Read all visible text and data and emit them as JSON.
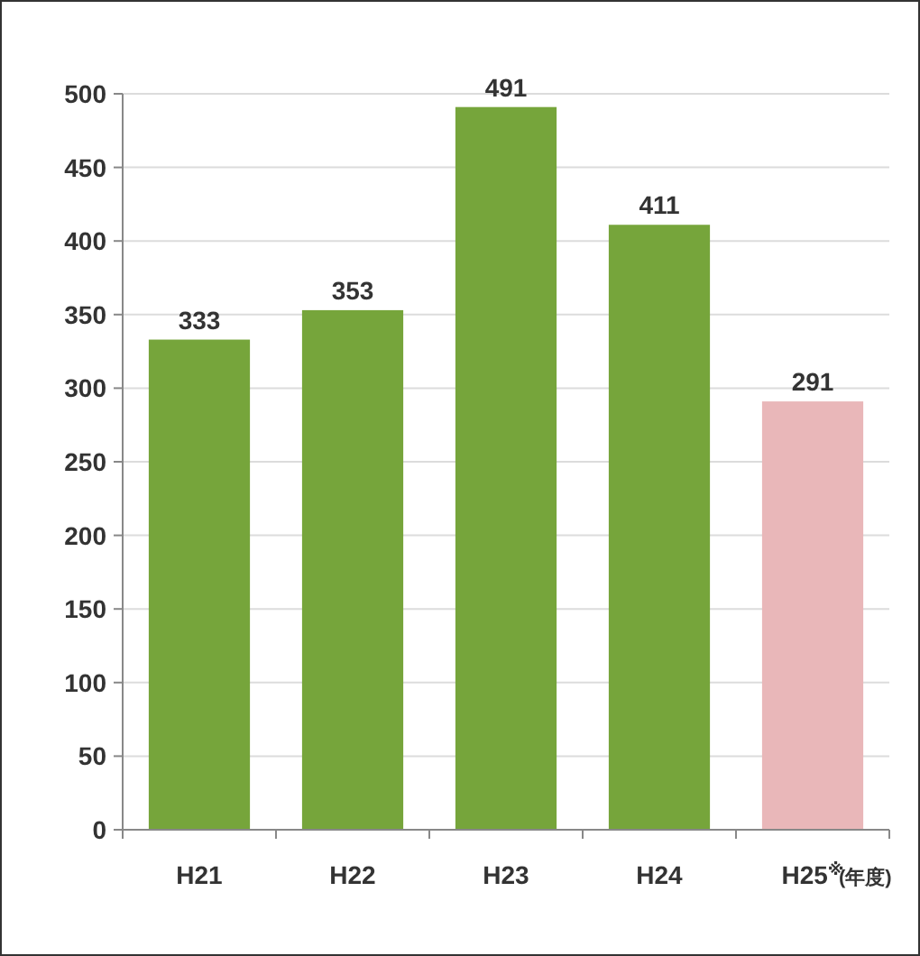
{
  "chart_data": {
    "type": "bar",
    "categories": [
      "H21",
      "H22",
      "H23",
      "H24",
      "H25$^{※}$"
    ],
    "values": [
      333,
      353,
      491,
      411,
      291
    ],
    "colors": [
      "#76a53b",
      "#76a53b",
      "#76a53b",
      "#76a53b",
      "#e9b7b9"
    ],
    "xlabel": "(年度)",
    "ylim": [
      0,
      500
    ],
    "yticks": [
      0,
      50,
      100,
      150,
      200,
      250,
      300,
      350,
      400,
      450,
      500
    ],
    "grid": "y",
    "data_labels": true
  }
}
